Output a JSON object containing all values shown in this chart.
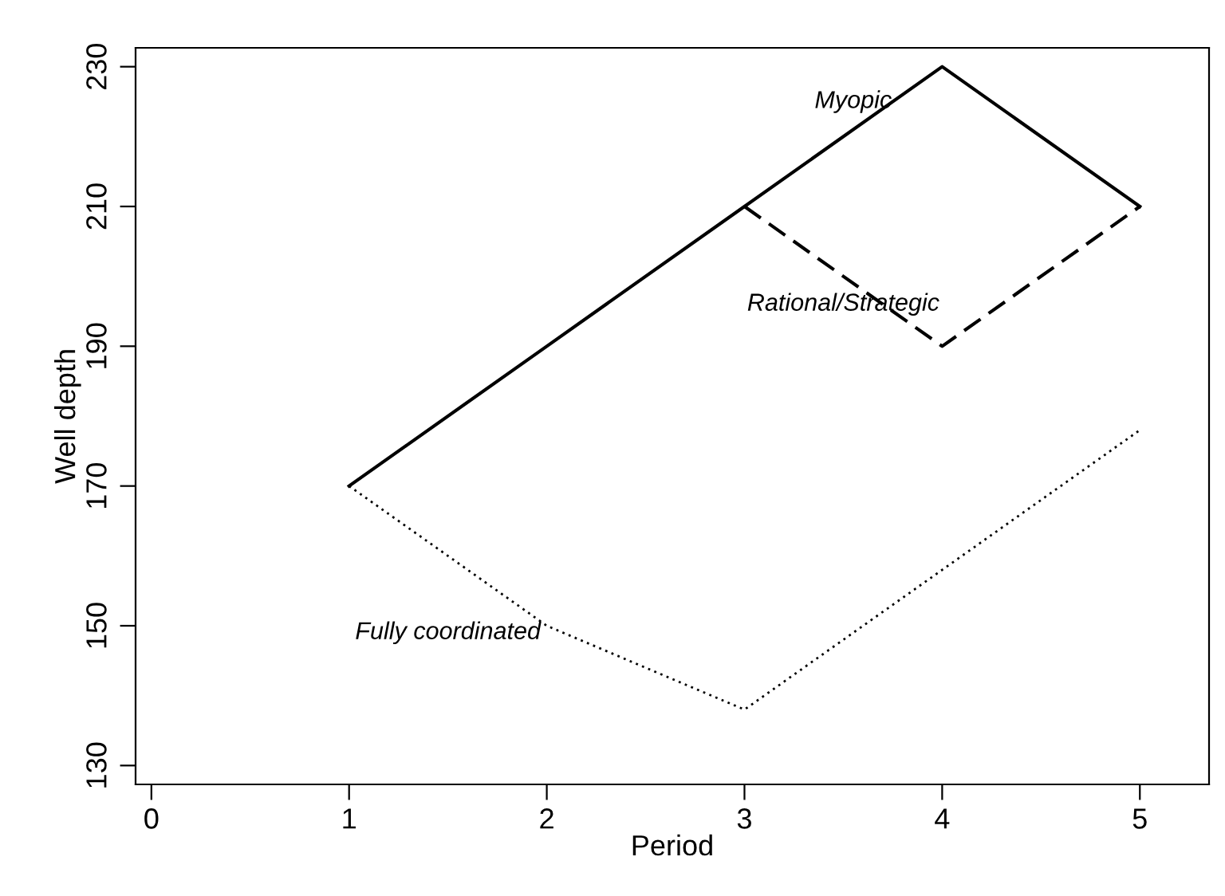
{
  "chart_data": {
    "type": "line",
    "xlabel": "Period",
    "ylabel": "Well depth",
    "xlim": [
      -0.08,
      5.35
    ],
    "xticks": [
      0,
      1,
      2,
      3,
      4,
      5
    ],
    "ylim": [
      127.3,
      232.7
    ],
    "yticks": [
      130,
      150,
      170,
      190,
      210,
      230
    ],
    "grid": false,
    "marker": "none",
    "series": [
      {
        "name": "Myopic",
        "x": [
          1,
          2,
          3,
          4,
          5
        ],
        "values": [
          170,
          190,
          210,
          230,
          210
        ],
        "color": "#000000",
        "line_style": "solid"
      },
      {
        "name": "Rational/Strategic",
        "x": [
          3,
          4,
          5
        ],
        "values": [
          210,
          190,
          210
        ],
        "color": "#000000",
        "line_style": "dashed"
      },
      {
        "name": "Fully coordinated",
        "x": [
          1,
          2,
          3,
          4,
          5
        ],
        "values": [
          170,
          150,
          138,
          158,
          178
        ],
        "color": "#000000",
        "line_style": "dotted"
      }
    ]
  }
}
